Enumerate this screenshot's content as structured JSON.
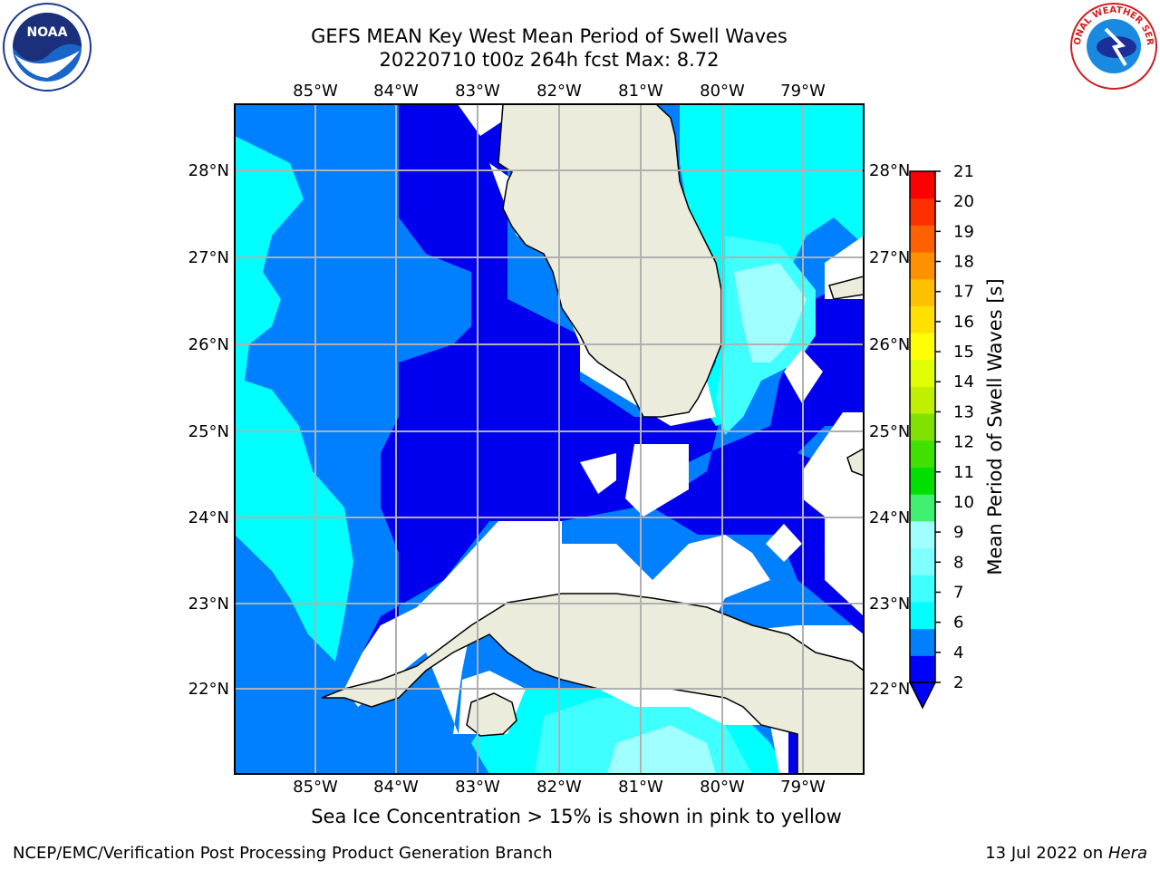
{
  "header": {
    "title_line1": "GEFS MEAN Key West Mean Period of Swell Waves",
    "title_line2": "20220710 t00z 264h fcst   Max: 8.72"
  },
  "map": {
    "lon_labels": [
      "85°W",
      "84°W",
      "83°W",
      "82°W",
      "81°W",
      "80°W",
      "79°W"
    ],
    "lat_labels": [
      "28°N",
      "27°N",
      "26°N",
      "25°N",
      "24°N",
      "23°N",
      "22°N"
    ],
    "colors": {
      "land": "#ececdc",
      "ocean_low": "#0000ee",
      "band_2_4": "#0080ff",
      "band_4_6": "#00ffff",
      "band_6_8": "#40ffff",
      "band_8_9": "#a0ffff"
    }
  },
  "colorbar": {
    "label": "Mean Period of Swell Waves [s]",
    "ticks": [
      "2",
      "4",
      "6",
      "7",
      "8",
      "9",
      "10",
      "11",
      "12",
      "13",
      "14",
      "15",
      "16",
      "17",
      "18",
      "19",
      "20",
      "21"
    ],
    "colors": [
      "#0000ff",
      "#0080ff",
      "#00ffff",
      "#40ffff",
      "#80ffff",
      "#a0ffff",
      "#40f070",
      "#00e000",
      "#40e000",
      "#80e000",
      "#c0f000",
      "#e0ff00",
      "#ffff00",
      "#ffe000",
      "#ffc000",
      "#ff9000",
      "#ff6000",
      "#ff3000",
      "#ff0000"
    ]
  },
  "logos": {
    "noaa_label": "NOAA",
    "nws_ring_text": "NATIONAL WEATHER SERVICE"
  },
  "notes": {
    "sea_ice": "Sea Ice Concentration > 15% is shown in pink to yellow"
  },
  "footer": {
    "left": "NCEP/EMC/Verification Post Processing Product Generation Branch",
    "right_date": "13 Jul 2022 on ",
    "right_host": "Hera"
  }
}
